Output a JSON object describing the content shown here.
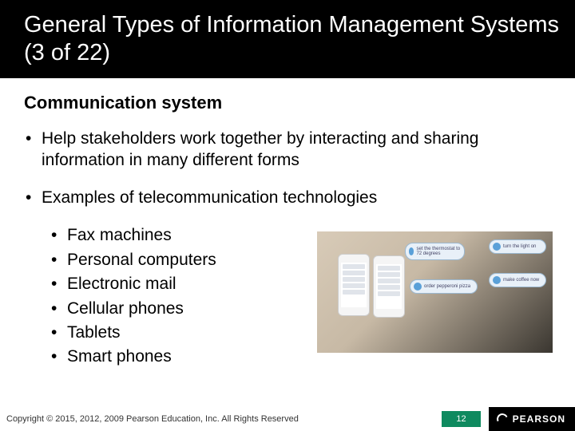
{
  "title": "General Types of Information Management Systems (3 of 22)",
  "subheading": "Communication system",
  "bullets": [
    "Help stakeholders work together by interacting and sharing information in many different forms",
    "Examples of telecommunication technologies"
  ],
  "sub_bullets": [
    "Fax machines",
    "Personal computers",
    "Electronic mail",
    "Cellular phones",
    "Tablets",
    "Smart phones"
  ],
  "illustration": {
    "badges": [
      "set the thermostat to 72 degrees",
      "order pepperoni pizza",
      "turn the light on",
      "make coffee now"
    ]
  },
  "footer": {
    "copyright": "Copyright © 2015, 2012, 2009 Pearson Education, Inc. All Rights Reserved",
    "page_number": "12",
    "brand": "PEARSON"
  },
  "colors": {
    "title_bg": "#000000",
    "title_fg": "#ffffff",
    "body_fg": "#000000",
    "page_badge_bg": "#0f8a5f",
    "logo_bg": "#000000"
  }
}
